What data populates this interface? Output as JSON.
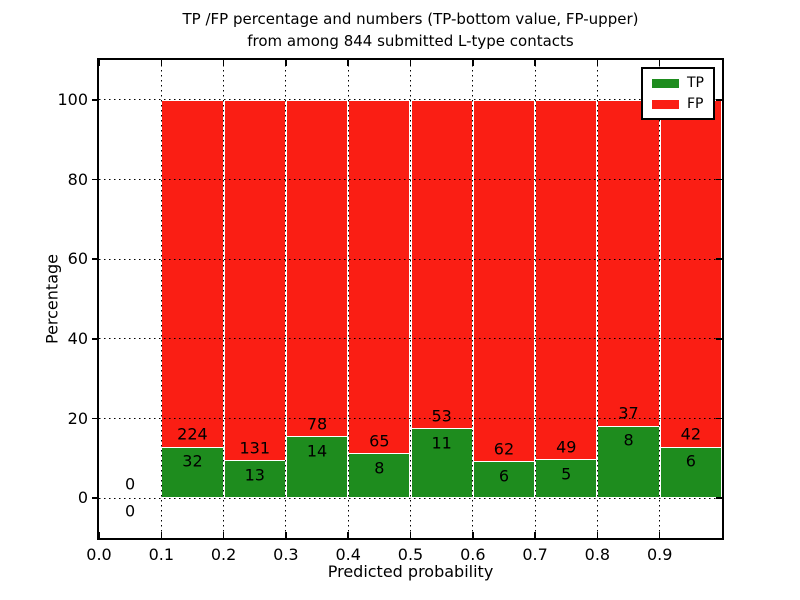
{
  "figure": {
    "title_line1": "TP /FP percentage and numbers (TP-bottom value, FP-upper)",
    "title_line2": "from among 844 submitted L-type contacts",
    "xlabel": "Predicted probability",
    "ylabel": "Percentage"
  },
  "chart_data": {
    "type": "bar",
    "stacked": true,
    "normalized_to_percent": true,
    "title": "TP /FP percentage and numbers (TP-bottom value, FP-upper) from among 844 submitted L-type contacts",
    "xlabel": "Predicted probability",
    "ylabel": "Percentage",
    "xlim": [
      0.0,
      1.0
    ],
    "ylim": [
      -10,
      110
    ],
    "x_ticks": [
      "0.0",
      "0.1",
      "0.2",
      "0.3",
      "0.4",
      "0.5",
      "0.6",
      "0.7",
      "0.8",
      "0.9"
    ],
    "y_ticks": [
      "0",
      "20",
      "40",
      "60",
      "80",
      "100"
    ],
    "grid": "dotted",
    "grid_above_bars": true,
    "legend_position": "upper right",
    "total_contacts": 844,
    "bin_edges": [
      0.0,
      0.1,
      0.2,
      0.3,
      0.4,
      0.5,
      0.6,
      0.7,
      0.8,
      0.9,
      1.0
    ],
    "series": [
      {
        "name": "TP",
        "color": "#1e8c1e",
        "counts": [
          0,
          32,
          13,
          14,
          8,
          11,
          6,
          5,
          8,
          6
        ]
      },
      {
        "name": "FP",
        "color": "#fa1e14",
        "counts": [
          0,
          224,
          131,
          78,
          65,
          53,
          62,
          49,
          37,
          42
        ]
      }
    ],
    "tp_percent_heights": [
      0,
      12.5,
      9.03,
      15.22,
      10.96,
      17.19,
      8.82,
      9.26,
      17.78,
      12.5
    ]
  }
}
